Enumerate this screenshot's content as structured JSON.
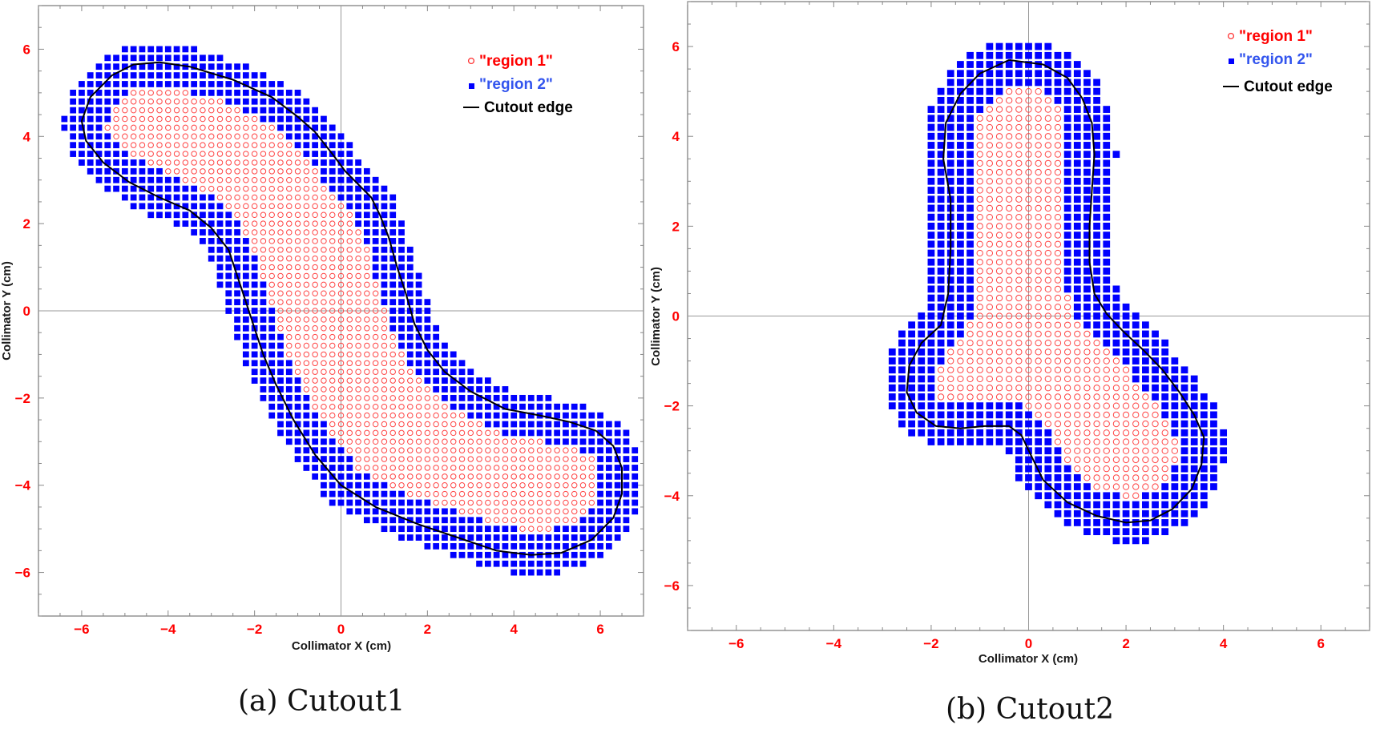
{
  "chart_data": [
    {
      "type": "scatter",
      "caption": "(a)  Cutout1",
      "xlabel": "Collimator X (cm)",
      "ylabel": "Collimator Y (cm)",
      "xlim": [
        -7,
        7
      ],
      "ylim": [
        -7,
        7
      ],
      "xticks": [
        -6,
        -4,
        -2,
        0,
        2,
        4,
        6
      ],
      "yticks": [
        -6,
        -4,
        -2,
        0,
        2,
        4,
        6
      ],
      "grid": false,
      "origin_axes": true,
      "legend_position": "top-right",
      "spacing": 0.2,
      "series": [
        {
          "name": "\"region 1\"",
          "marker": "open-circle",
          "color": "#ff3333"
        },
        {
          "name": "\"region 2\"",
          "marker": "filled-square",
          "color": "#0000ff"
        },
        {
          "name": "Cutout edge",
          "marker": "line",
          "color": "#000000"
        }
      ],
      "edge": [
        [
          -4.2,
          5.7
        ],
        [
          -3.5,
          5.6
        ],
        [
          -2.5,
          5.3
        ],
        [
          -1.6,
          4.9
        ],
        [
          -1.0,
          4.45
        ],
        [
          -0.6,
          4.1
        ],
        [
          -0.2,
          3.6
        ],
        [
          0.1,
          3.2
        ],
        [
          0.4,
          2.9
        ],
        [
          0.7,
          2.6
        ],
        [
          0.9,
          2.2
        ],
        [
          1.1,
          1.7
        ],
        [
          1.3,
          1.0
        ],
        [
          1.5,
          0.4
        ],
        [
          1.7,
          -0.3
        ],
        [
          2.0,
          -0.9
        ],
        [
          2.4,
          -1.4
        ],
        [
          3.0,
          -1.85
        ],
        [
          3.8,
          -2.25
        ],
        [
          4.6,
          -2.4
        ],
        [
          5.3,
          -2.55
        ],
        [
          5.9,
          -2.75
        ],
        [
          6.3,
          -3.1
        ],
        [
          6.5,
          -3.6
        ],
        [
          6.5,
          -4.2
        ],
        [
          6.3,
          -4.75
        ],
        [
          5.8,
          -5.25
        ],
        [
          5.1,
          -5.55
        ],
        [
          4.4,
          -5.6
        ],
        [
          3.6,
          -5.5
        ],
        [
          2.7,
          -5.2
        ],
        [
          1.8,
          -4.9
        ],
        [
          0.8,
          -4.5
        ],
        [
          0.0,
          -4.0
        ],
        [
          -0.6,
          -3.3
        ],
        [
          -1.1,
          -2.5
        ],
        [
          -1.5,
          -1.7
        ],
        [
          -1.8,
          -1.0
        ],
        [
          -2.0,
          -0.4
        ],
        [
          -2.2,
          0.2
        ],
        [
          -2.4,
          0.8
        ],
        [
          -2.6,
          1.4
        ],
        [
          -3.0,
          1.9
        ],
        [
          -3.5,
          2.3
        ],
        [
          -4.2,
          2.6
        ],
        [
          -4.9,
          2.95
        ],
        [
          -5.5,
          3.4
        ],
        [
          -5.9,
          3.9
        ],
        [
          -6.0,
          4.35
        ],
        [
          -5.8,
          4.9
        ],
        [
          -5.3,
          5.4
        ],
        [
          -4.8,
          5.65
        ],
        [
          -4.2,
          5.7
        ]
      ]
    },
    {
      "type": "scatter",
      "caption": "(b)  Cutout2",
      "xlabel": "Collimator X (cm)",
      "ylabel": "Collimator Y (cm)",
      "xlim": [
        -7,
        7
      ],
      "ylim": [
        -7,
        7
      ],
      "xticks": [
        -6,
        -4,
        -2,
        0,
        2,
        4,
        6
      ],
      "yticks": [
        -6,
        -4,
        -2,
        0,
        2,
        4,
        6
      ],
      "grid": false,
      "origin_axes": true,
      "legend_position": "top-right",
      "spacing": 0.2,
      "series": [
        {
          "name": "\"region 1\"",
          "marker": "open-circle",
          "color": "#ff3333"
        },
        {
          "name": "\"region 2\"",
          "marker": "filled-square",
          "color": "#0000ff"
        },
        {
          "name": "Cutout edge",
          "marker": "line",
          "color": "#000000"
        }
      ],
      "edge": [
        [
          -0.4,
          5.7
        ],
        [
          0.3,
          5.6
        ],
        [
          0.8,
          5.3
        ],
        [
          1.1,
          4.85
        ],
        [
          1.3,
          4.3
        ],
        [
          1.35,
          3.6
        ],
        [
          1.3,
          2.8
        ],
        [
          1.25,
          2.0
        ],
        [
          1.25,
          1.2
        ],
        [
          1.35,
          0.5
        ],
        [
          1.6,
          0.05
        ],
        [
          1.95,
          -0.35
        ],
        [
          2.35,
          -0.75
        ],
        [
          2.75,
          -1.2
        ],
        [
          3.1,
          -1.7
        ],
        [
          3.4,
          -2.2
        ],
        [
          3.6,
          -2.7
        ],
        [
          3.55,
          -3.3
        ],
        [
          3.35,
          -3.85
        ],
        [
          2.95,
          -4.3
        ],
        [
          2.5,
          -4.55
        ],
        [
          2.0,
          -4.6
        ],
        [
          1.4,
          -4.45
        ],
        [
          0.8,
          -4.15
        ],
        [
          0.3,
          -3.65
        ],
        [
          0.05,
          -3.1
        ],
        [
          -0.15,
          -2.65
        ],
        [
          -0.4,
          -2.45
        ],
        [
          -0.9,
          -2.45
        ],
        [
          -1.4,
          -2.5
        ],
        [
          -1.9,
          -2.45
        ],
        [
          -2.3,
          -2.15
        ],
        [
          -2.5,
          -1.7
        ],
        [
          -2.45,
          -1.1
        ],
        [
          -2.2,
          -0.6
        ],
        [
          -1.8,
          -0.2
        ],
        [
          -1.65,
          0.5
        ],
        [
          -1.6,
          1.5
        ],
        [
          -1.6,
          2.6
        ],
        [
          -1.75,
          3.5
        ],
        [
          -1.7,
          4.3
        ],
        [
          -1.4,
          4.95
        ],
        [
          -1.0,
          5.4
        ],
        [
          -0.4,
          5.7
        ]
      ]
    }
  ]
}
